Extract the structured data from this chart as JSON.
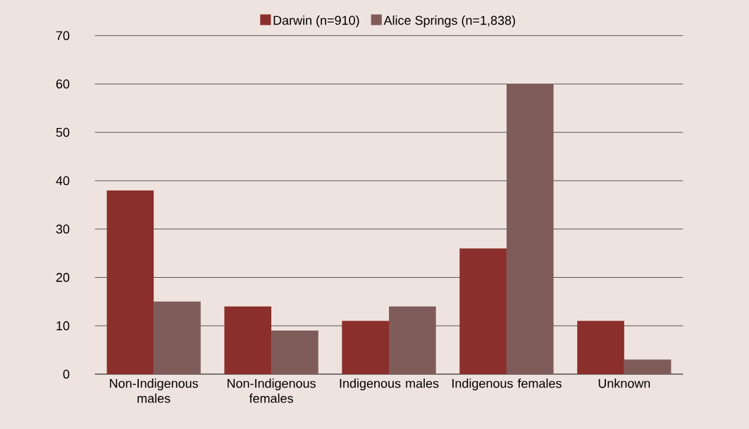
{
  "chart_data": {
    "type": "bar",
    "categories": [
      "Non-Indigenous males",
      "Non-Indigenous females",
      "Indigenous males",
      "Indigenous females",
      "Unknown"
    ],
    "series": [
      {
        "name": "Darwin (n=910)",
        "color": "#8b2f2c",
        "values": [
          38,
          14,
          11,
          26,
          11
        ]
      },
      {
        "name": "Alice Springs (n=1,838)",
        "color": "#7f5b5a",
        "values": [
          15,
          9,
          14,
          60,
          3
        ]
      }
    ],
    "ylim": [
      0,
      70
    ],
    "yticks": [
      0,
      10,
      20,
      30,
      40,
      50,
      60,
      70
    ],
    "grid": "y",
    "legend": "top"
  }
}
